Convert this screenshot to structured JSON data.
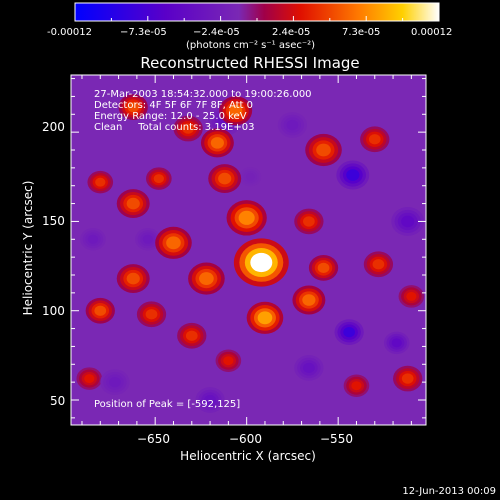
{
  "colorbar": {
    "tick_labels": [
      "-0.00012",
      "−7.3e-05",
      "−2.4e-05",
      "2.4e-05",
      "7.3e-05",
      "0.00012"
    ],
    "units": "(photons cm⁻² s⁻¹ asec⁻²)",
    "range": [
      -0.00012,
      0.00012
    ]
  },
  "chart_data": {
    "type": "heatmap",
    "title": "Reconstructed RHESSI Image",
    "xlabel": "Heliocentric X (arcsec)",
    "ylabel": "Heliocentric Y (arcsec)",
    "xlim": [
      -696,
      -502
    ],
    "ylim": [
      36,
      232
    ],
    "x_ticks": [
      -650,
      -600,
      -550
    ],
    "x_tick_labels": [
      "−650",
      "−600",
      "−550"
    ],
    "y_ticks": [
      50,
      100,
      150,
      200
    ],
    "y_tick_labels": [
      "50",
      "100",
      "150",
      "200"
    ],
    "annotations": [
      "27-Mar-2003 18:54:32.000 to 19:00:26.000",
      "Detectors: 4F 5F 6F 7F 8F, Att 0",
      "Energy Range: 12.0 - 25.0 keV",
      "Clean     Total counts: 3.19E+03"
    ],
    "peak_label": "Position of Peak = [-592,125]",
    "peak": [
      -592,
      125
    ],
    "blobs": [
      {
        "x": -592,
        "y": 127,
        "v": 0.00012,
        "r": 15
      },
      {
        "x": -600,
        "y": 152,
        "v": 7e-05,
        "r": 11
      },
      {
        "x": -612,
        "y": 174,
        "v": 5e-05,
        "r": 9
      },
      {
        "x": -616,
        "y": 194,
        "v": 6e-05,
        "r": 9
      },
      {
        "x": -606,
        "y": 212,
        "v": 6e-05,
        "r": 9
      },
      {
        "x": -632,
        "y": 202,
        "v": 4e-05,
        "r": 8
      },
      {
        "x": -662,
        "y": 214,
        "v": 5e-05,
        "r": 8
      },
      {
        "x": -648,
        "y": 174,
        "v": 4e-05,
        "r": 7
      },
      {
        "x": -662,
        "y": 160,
        "v": 5e-05,
        "r": 9
      },
      {
        "x": -680,
        "y": 172,
        "v": 4e-05,
        "r": 7
      },
      {
        "x": -640,
        "y": 138,
        "v": 6e-05,
        "r": 10
      },
      {
        "x": -622,
        "y": 118,
        "v": 6e-05,
        "r": 10
      },
      {
        "x": -662,
        "y": 118,
        "v": 5e-05,
        "r": 9
      },
      {
        "x": -680,
        "y": 100,
        "v": 5e-05,
        "r": 8
      },
      {
        "x": -652,
        "y": 98,
        "v": 4e-05,
        "r": 8
      },
      {
        "x": -630,
        "y": 86,
        "v": 4e-05,
        "r": 8
      },
      {
        "x": -610,
        "y": 72,
        "v": 3e-05,
        "r": 7
      },
      {
        "x": -590,
        "y": 96,
        "v": 8e-05,
        "r": 10
      },
      {
        "x": -566,
        "y": 106,
        "v": 6e-05,
        "r": 9
      },
      {
        "x": -558,
        "y": 124,
        "v": 5e-05,
        "r": 8
      },
      {
        "x": -566,
        "y": 150,
        "v": 4e-05,
        "r": 8
      },
      {
        "x": -558,
        "y": 190,
        "v": 5e-05,
        "r": 10
      },
      {
        "x": -530,
        "y": 196,
        "v": 4e-05,
        "r": 8
      },
      {
        "x": -528,
        "y": 126,
        "v": 4e-05,
        "r": 8
      },
      {
        "x": -510,
        "y": 108,
        "v": 3e-05,
        "r": 7
      },
      {
        "x": -512,
        "y": 62,
        "v": 4e-05,
        "r": 8
      },
      {
        "x": -540,
        "y": 58,
        "v": 3e-05,
        "r": 7
      },
      {
        "x": -686,
        "y": 62,
        "v": 3e-05,
        "r": 7
      },
      {
        "x": -612,
        "y": 206,
        "v": -4e-05,
        "r": 9
      },
      {
        "x": -654,
        "y": 140,
        "v": -3e-05,
        "r": 7
      },
      {
        "x": -575,
        "y": 204,
        "v": -3e-05,
        "r": 8
      },
      {
        "x": -542,
        "y": 176,
        "v": -8e-05,
        "r": 9
      },
      {
        "x": -512,
        "y": 150,
        "v": -5e-05,
        "r": 9
      },
      {
        "x": -544,
        "y": 88,
        "v": -8e-05,
        "r": 8
      },
      {
        "x": -518,
        "y": 82,
        "v": -5e-05,
        "r": 7
      },
      {
        "x": -566,
        "y": 68,
        "v": -4e-05,
        "r": 8
      },
      {
        "x": -620,
        "y": 50,
        "v": -4e-05,
        "r": 8
      },
      {
        "x": -672,
        "y": 60,
        "v": -3e-05,
        "r": 8
      },
      {
        "x": -684,
        "y": 140,
        "v": -3e-05,
        "r": 7
      },
      {
        "x": -598,
        "y": 175,
        "v": -2e-05,
        "r": 6
      }
    ],
    "background": -1.2e-05
  },
  "footer": {
    "date": "12-Jun-2013 00:09"
  }
}
